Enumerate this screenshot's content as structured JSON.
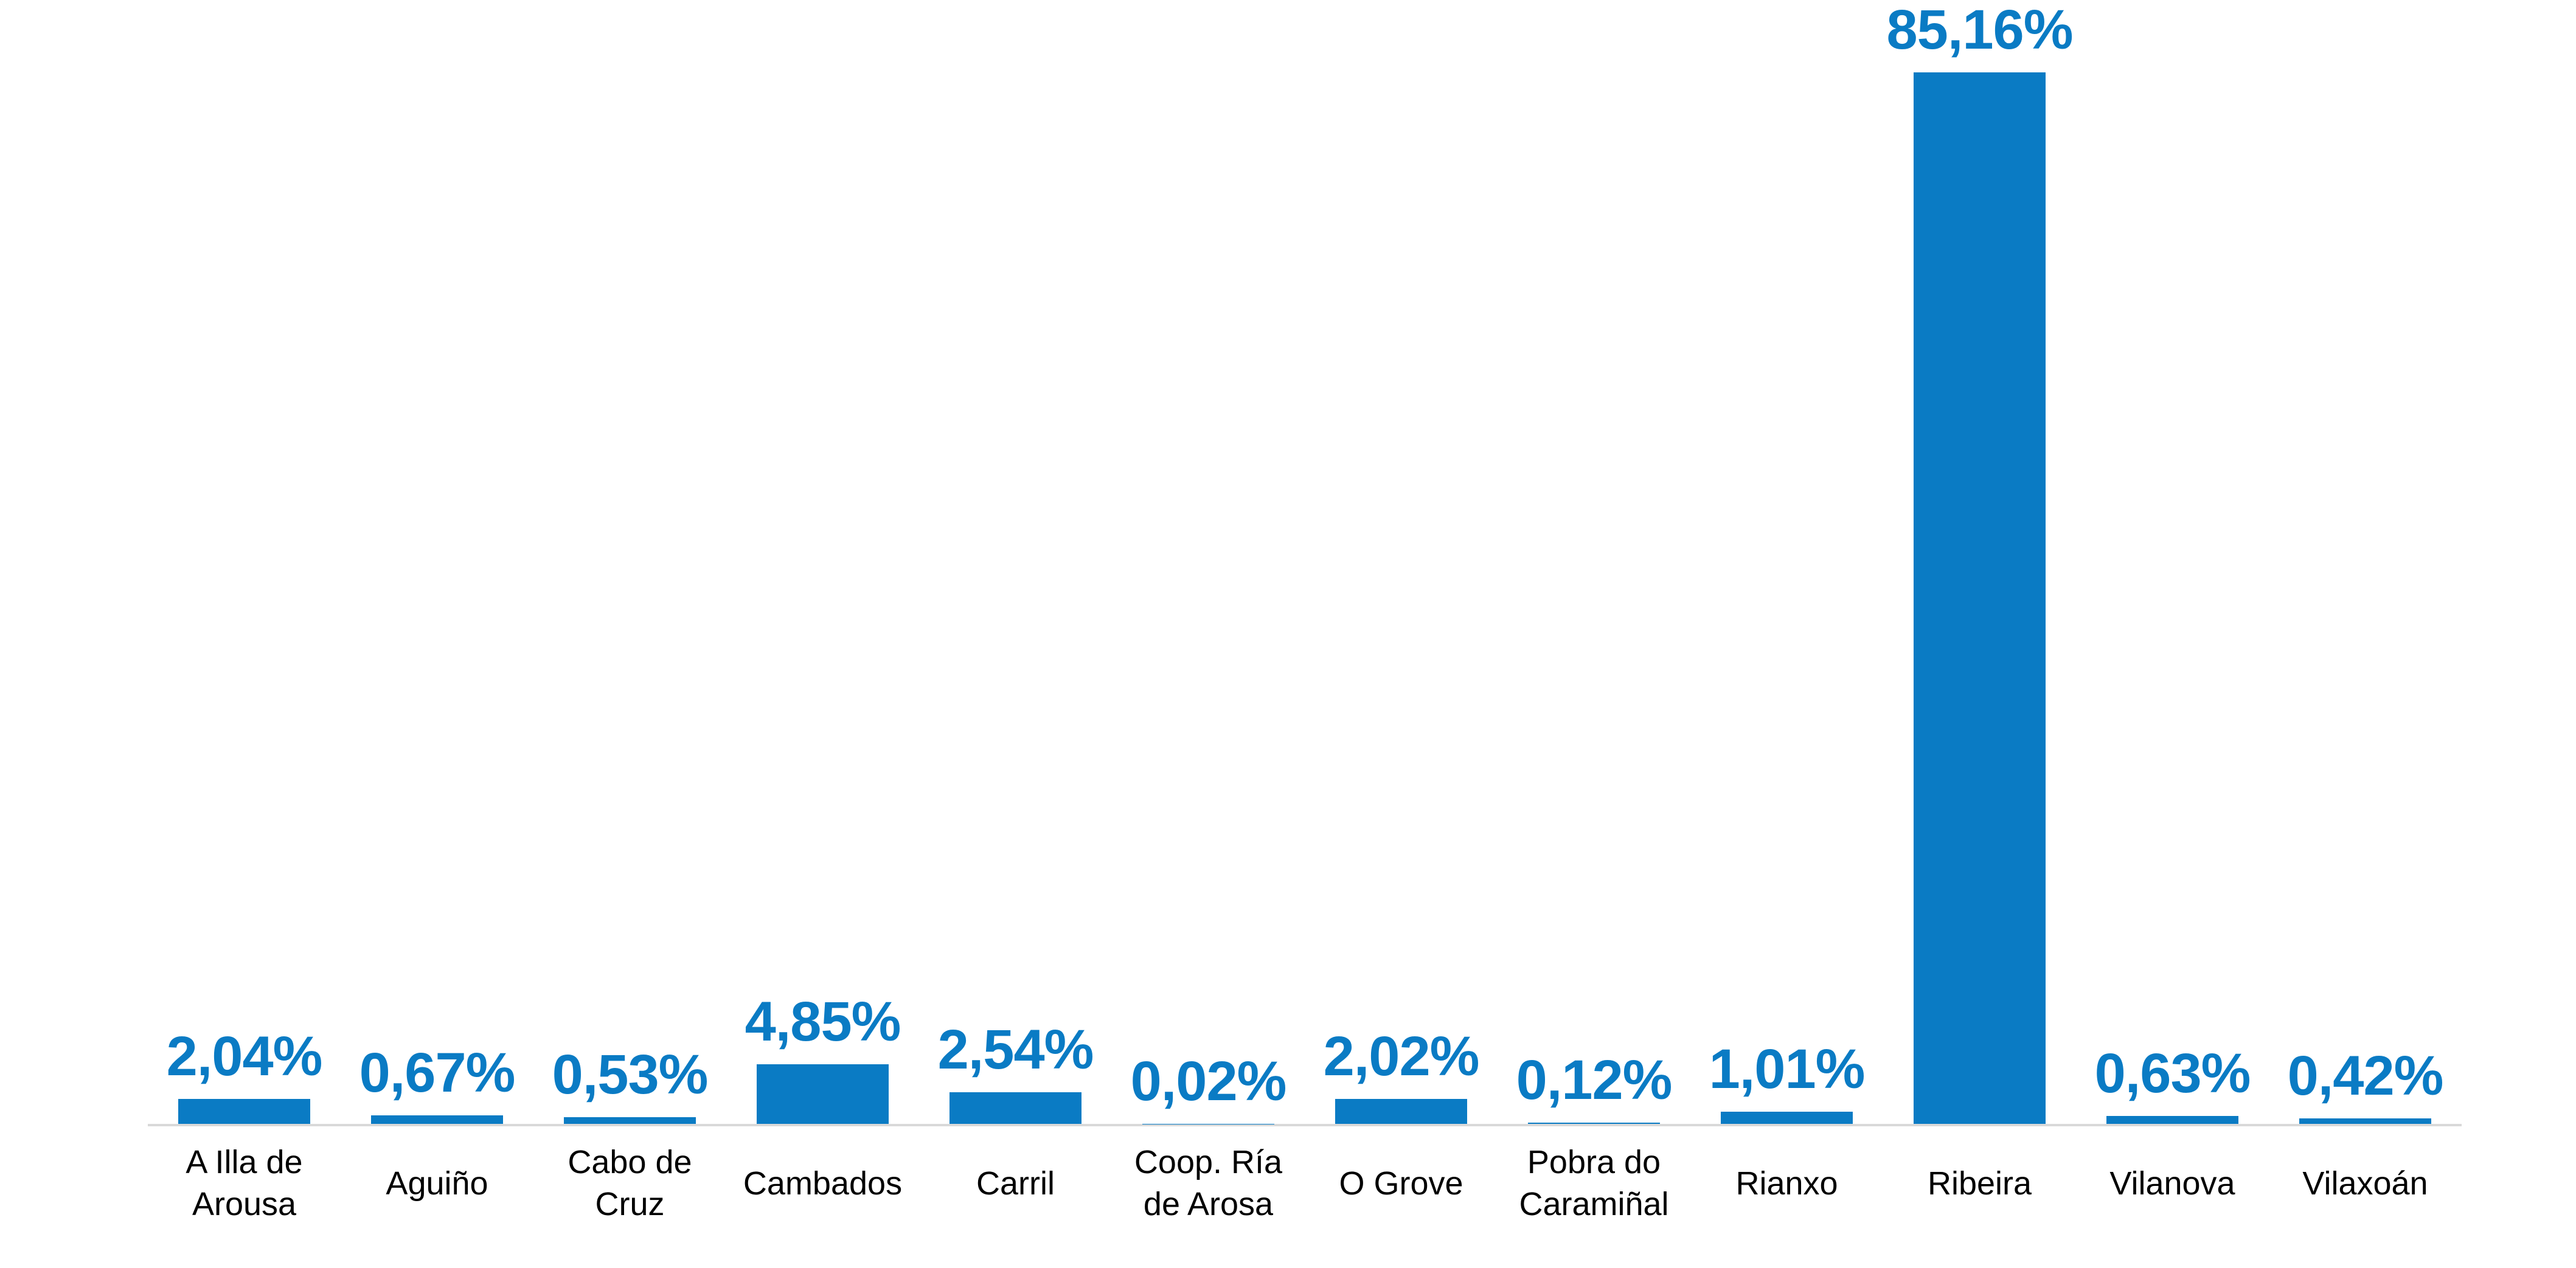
{
  "chart_data": {
    "type": "bar",
    "title": "",
    "xlabel": "",
    "ylabel": "",
    "unit": "%",
    "decimal_separator": ",",
    "categories": [
      "A Illa de Arousa",
      "Aguiño",
      "Cabo de Cruz",
      "Cambados",
      "Carril",
      "Coop. Ría de Arosa",
      "O Grove",
      "Pobra do Caramiñal",
      "Rianxo",
      "Ribeira",
      "Vilanova",
      "Vilaxoán"
    ],
    "values": [
      2.04,
      0.67,
      0.53,
      4.85,
      2.54,
      0.02,
      2.02,
      0.12,
      1.01,
      85.16,
      0.63,
      0.42
    ],
    "value_labels": [
      "2,04%",
      "0,67%",
      "0,53%",
      "4,85%",
      "2,54%",
      "0,02%",
      "2,02%",
      "0,12%",
      "1,01%",
      "85,16%",
      "0,63%",
      "0,42%"
    ],
    "label_lines": [
      [
        "A Illa de",
        "Arousa"
      ],
      [
        "Aguiño"
      ],
      [
        "Cabo de",
        "Cruz"
      ],
      [
        "Cambados"
      ],
      [
        "Carril"
      ],
      [
        "Coop. Ría",
        "de Arosa"
      ],
      [
        "O Grove"
      ],
      [
        "Pobra do",
        "Caramiñal"
      ],
      [
        "Rianxo"
      ],
      [
        "Ribeira"
      ],
      [
        "Vilanova"
      ],
      [
        "Vilaxoán"
      ]
    ],
    "ylim": [
      0,
      91
    ],
    "grid": false,
    "legend": "none",
    "colors": {
      "bar": "#0A7BC4",
      "value_label": "#0A7BC4",
      "category_label": "#000000",
      "axis_line": "#D9D9D9",
      "background": "#FFFFFF"
    }
  }
}
